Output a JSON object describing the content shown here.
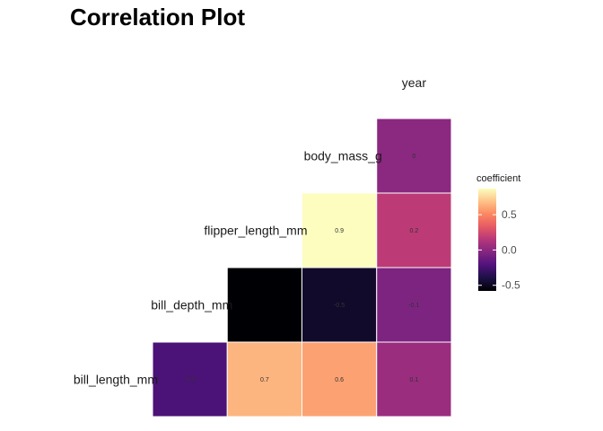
{
  "chart_data": {
    "type": "heatmap",
    "title": "Correlation Plot",
    "column_labels": [
      "year"
    ],
    "row_labels": [
      "body_mass_g",
      "flipper_length_mm",
      "bill_depth_mm",
      "bill_length_mm"
    ],
    "cells": [
      {
        "row": "body_mass_g",
        "col": "year",
        "value": 0.0,
        "label": "0"
      },
      {
        "row": "flipper_length_mm",
        "col": "body_mass_g",
        "value": 0.87,
        "label": "0.9"
      },
      {
        "row": "flipper_length_mm",
        "col": "year",
        "value": 0.17,
        "label": "0.2"
      },
      {
        "row": "bill_depth_mm",
        "col": "flipper_length_mm",
        "value": -0.58,
        "label": ""
      },
      {
        "row": "bill_depth_mm",
        "col": "body_mass_g",
        "value": -0.47,
        "label": "-0.5"
      },
      {
        "row": "bill_depth_mm",
        "col": "year",
        "value": -0.05,
        "label": "-0.1"
      },
      {
        "row": "bill_length_mm",
        "col": "bill_depth_mm",
        "value": -0.23,
        "label": "-0.2"
      },
      {
        "row": "bill_length_mm",
        "col": "flipper_length_mm",
        "value": 0.65,
        "label": "0.7"
      },
      {
        "row": "bill_length_mm",
        "col": "body_mass_g",
        "value": 0.59,
        "label": "0.6"
      },
      {
        "row": "bill_length_mm",
        "col": "year",
        "value": 0.05,
        "label": "0.1"
      }
    ],
    "legend": {
      "title": "coefficient",
      "ticks": [
        {
          "value": 0.5,
          "label": "0.5"
        },
        {
          "value": 0.0,
          "label": "0.0"
        },
        {
          "value": -0.5,
          "label": "-0.5"
        }
      ],
      "range": [
        -0.58,
        0.87
      ],
      "placement": "right",
      "palette": "magma"
    },
    "grid": false
  },
  "colors": {
    "magma_stops": [
      "#000004",
      "#1c1044",
      "#4f127b",
      "#812581",
      "#b5367a",
      "#e55964",
      "#fb8761",
      "#fec287",
      "#fcfdbf"
    ],
    "cell_border": "#ffffff"
  }
}
